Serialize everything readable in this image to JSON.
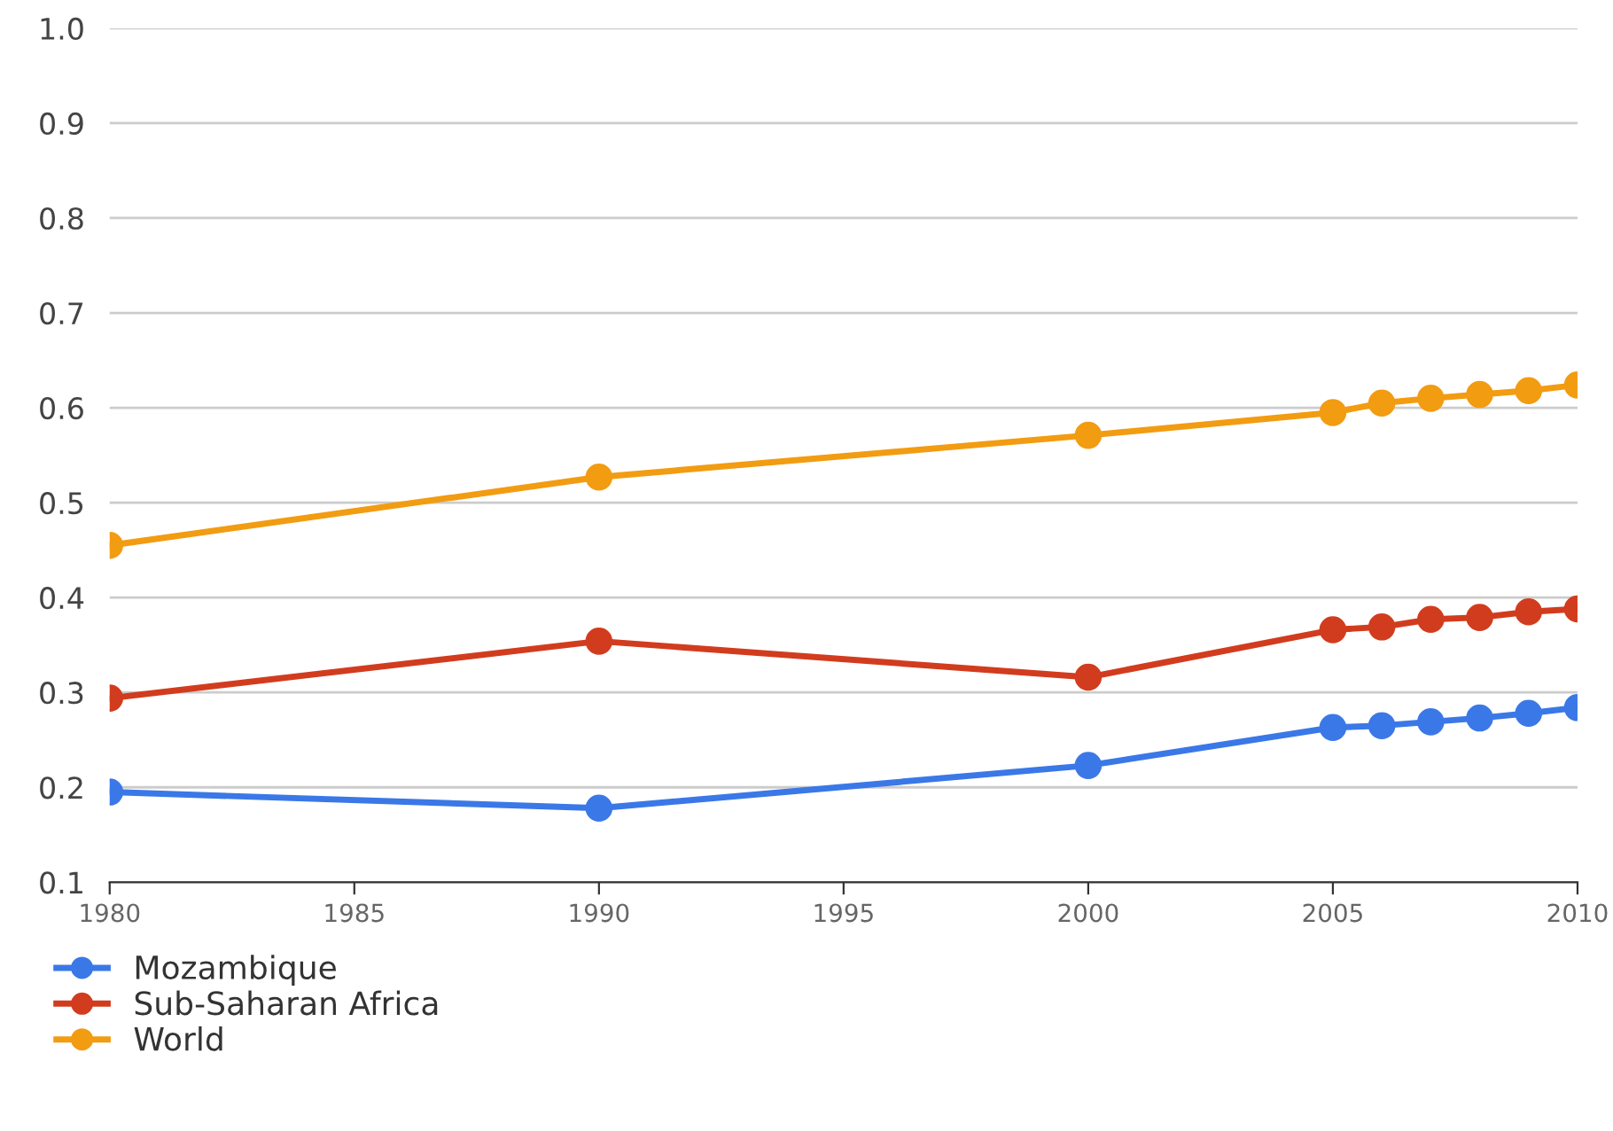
{
  "chart_data": {
    "type": "line",
    "x": [
      1980,
      1990,
      2000,
      2005,
      2006,
      2007,
      2008,
      2009,
      2010
    ],
    "series": [
      {
        "name": "Mozambique",
        "color": "#3b78e7",
        "values": [
          0.195,
          0.178,
          0.223,
          0.263,
          0.265,
          0.269,
          0.273,
          0.278,
          0.284
        ]
      },
      {
        "name": "Sub-Saharan Africa",
        "color": "#d23c1e",
        "values": [
          0.294,
          0.354,
          0.316,
          0.366,
          0.369,
          0.377,
          0.379,
          0.385,
          0.388
        ]
      },
      {
        "name": "World",
        "color": "#f29c12",
        "values": [
          0.455,
          0.527,
          0.571,
          0.595,
          0.605,
          0.61,
          0.614,
          0.618,
          0.624
        ]
      }
    ],
    "xlim": [
      1980,
      2010
    ],
    "xticks": [
      1980,
      1985,
      1990,
      1995,
      2000,
      2005,
      2010
    ],
    "ylim": [
      0.1,
      1.0
    ],
    "yticks": [
      {
        "value": 0.1,
        "label": "0.1"
      },
      {
        "value": 0.2,
        "label": "0.2"
      },
      {
        "value": 0.3,
        "label": "0.3"
      },
      {
        "value": 0.4,
        "label": "0.4"
      },
      {
        "value": 0.5,
        "label": "0.5"
      },
      {
        "value": 0.6,
        "label": "0.6"
      },
      {
        "value": 0.7,
        "label": "0.7"
      },
      {
        "value": 0.8,
        "label": "0.8"
      },
      {
        "value": 0.9,
        "label": "0.9"
      },
      {
        "value": 1.0,
        "label": "1.0"
      }
    ],
    "grid": "y",
    "legend": "bottom left",
    "marker": "circle",
    "line_style": "solid"
  }
}
